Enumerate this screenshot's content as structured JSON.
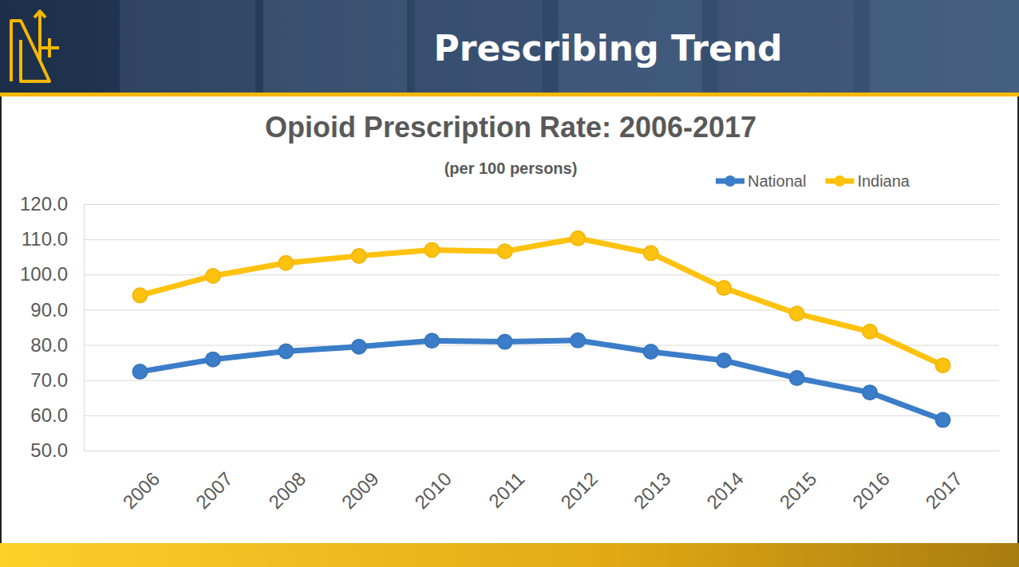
{
  "header": {
    "title": "Prescribing Trend"
  },
  "chart_data": {
    "type": "line",
    "title": "Opioid Prescription Rate: 2006-2017",
    "subtitle": "(per 100 persons)",
    "categories": [
      "2006",
      "2007",
      "2008",
      "2009",
      "2010",
      "2011",
      "2012",
      "2013",
      "2014",
      "2015",
      "2016",
      "2017"
    ],
    "series": [
      {
        "name": "National",
        "color": "#3b7dc8",
        "marker": "circle",
        "line_style": "solid",
        "values": [
          72.4,
          75.9,
          78.2,
          79.5,
          81.2,
          80.9,
          81.3,
          78.1,
          75.6,
          70.6,
          66.5,
          58.7
        ]
      },
      {
        "name": "Indiana",
        "color": "#ffc20e",
        "marker": "circle",
        "line_style": "solid",
        "values": [
          94.1,
          99.6,
          103.3,
          105.3,
          107.0,
          106.6,
          110.3,
          106.1,
          96.2,
          88.9,
          83.8,
          74.2
        ]
      }
    ],
    "ylim": [
      50,
      120
    ],
    "yticks": [
      {
        "value": 50,
        "label": "50.0"
      },
      {
        "value": 60,
        "label": "60.0"
      },
      {
        "value": 70,
        "label": "70.0"
      },
      {
        "value": 80,
        "label": "80.0"
      },
      {
        "value": 90,
        "label": "90.0"
      },
      {
        "value": 100,
        "label": "100.0"
      },
      {
        "value": 110,
        "label": "110.0"
      },
      {
        "value": 120,
        "label": "120.0"
      }
    ],
    "grid": true,
    "legend": "top-right"
  }
}
